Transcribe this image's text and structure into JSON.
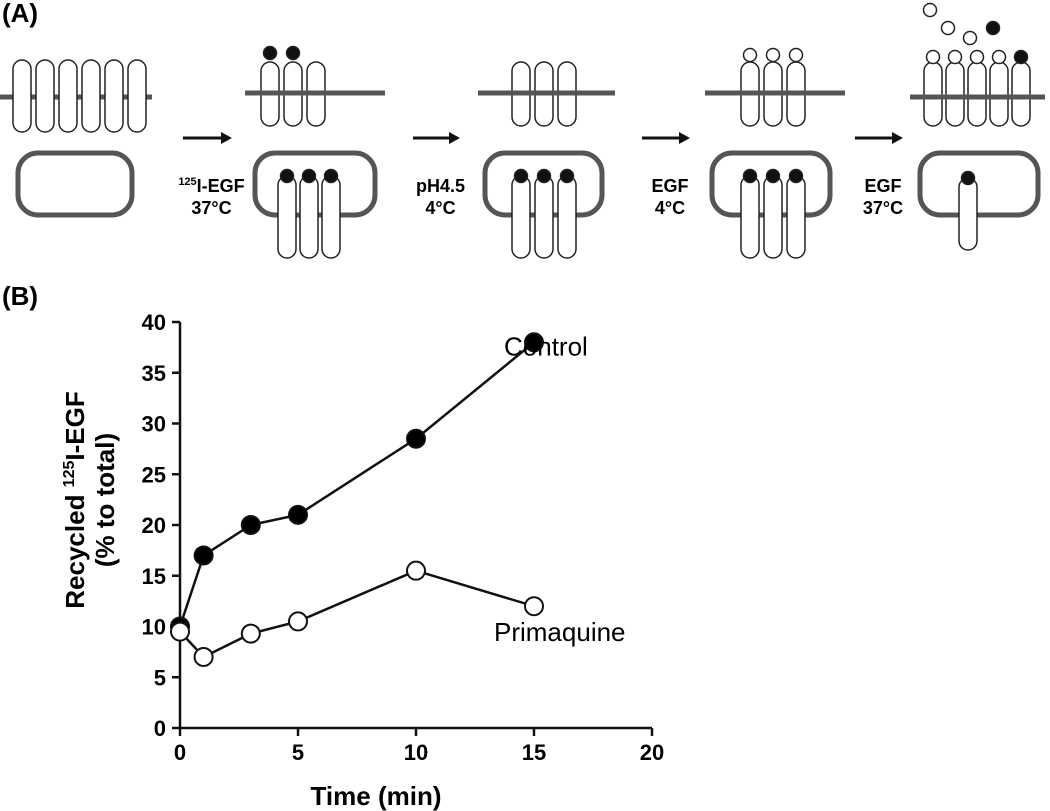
{
  "panel_a": {
    "label": "(A)",
    "steps": [
      {
        "sup": "125",
        "line1": "I-EGF",
        "line2": "37°C"
      },
      {
        "line1": "pH4.5",
        "line2": "4°C"
      },
      {
        "line1": "EGF",
        "line2": "4°C"
      },
      {
        "line1": "EGF",
        "line2": "37°C"
      }
    ]
  },
  "chart_data": {
    "type": "line",
    "panel_label": "(B)",
    "xlabel": "Time (min)",
    "ylabel": {
      "prefix": "Recycled ",
      "sup": "125",
      "suffix": "I-EGF",
      "line2": "(% to total)"
    },
    "x": [
      0,
      1,
      3,
      5,
      10,
      15
    ],
    "series": [
      {
        "name": "Control",
        "color": "#000000",
        "values": [
          10,
          17,
          20,
          21,
          28.5,
          38
        ]
      },
      {
        "name": "Primaquine",
        "color": "#ffffff",
        "values": [
          9.5,
          7,
          9.3,
          10.5,
          15.5,
          12
        ]
      }
    ],
    "xlim": [
      0,
      20
    ],
    "xticks": [
      0,
      5,
      10,
      15,
      20
    ],
    "ylim": [
      0,
      40
    ],
    "yticks": [
      0,
      5,
      10,
      15,
      20,
      25,
      30,
      35,
      40
    ]
  }
}
